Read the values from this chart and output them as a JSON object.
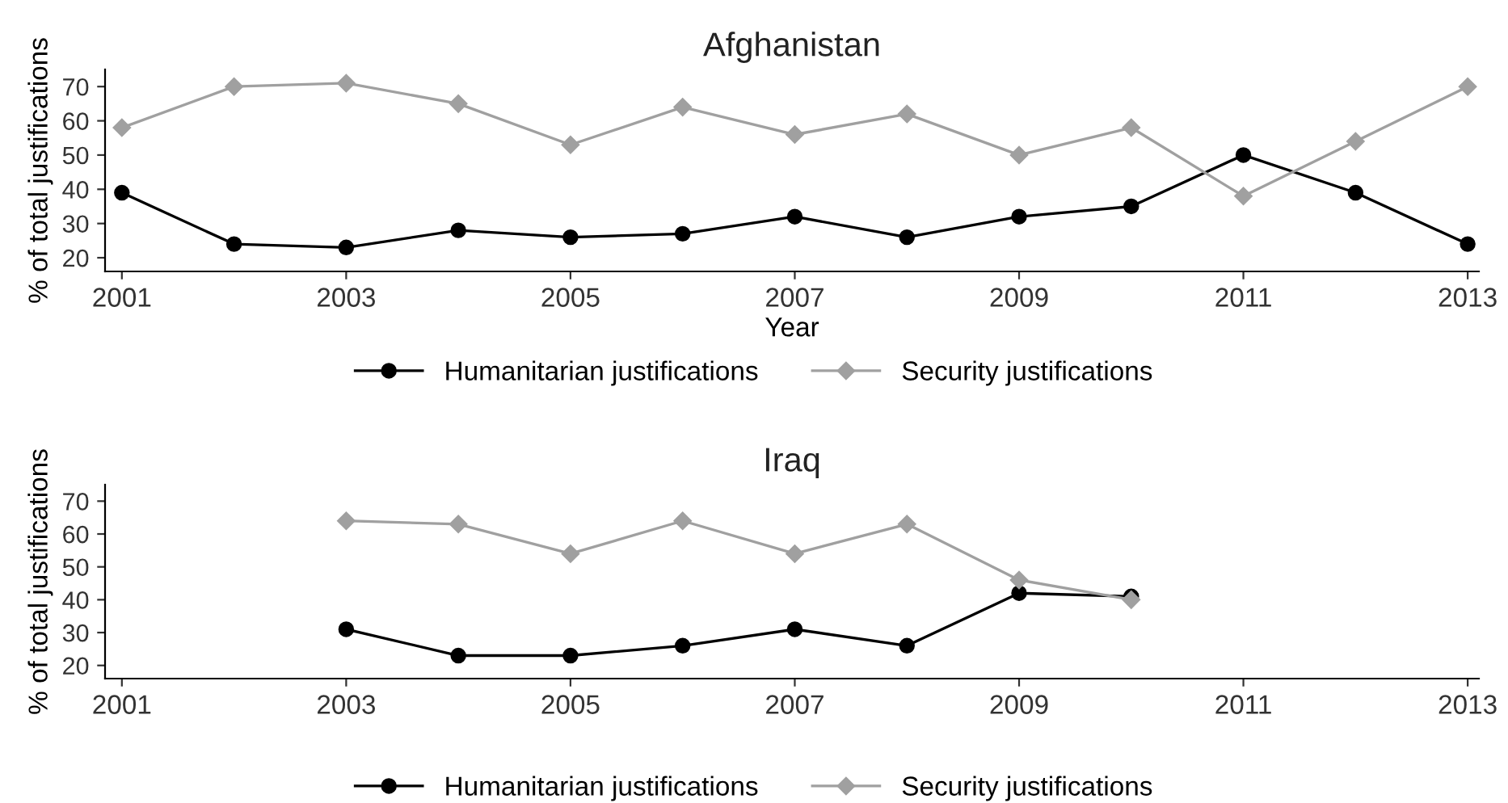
{
  "chart_data": [
    {
      "type": "line",
      "title": "Afghanistan",
      "xlabel": "Year",
      "ylabel": "% of total justifications",
      "xlim": [
        2000.85,
        2013.1
      ],
      "xticks": [
        2001,
        2003,
        2005,
        2007,
        2009,
        2011,
        2013
      ],
      "ylim": [
        16,
        75
      ],
      "yticks": [
        20,
        30,
        40,
        50,
        60,
        70
      ],
      "legend": "bottom",
      "x": [
        2001,
        2002,
        2003,
        2004,
        2005,
        2006,
        2007,
        2008,
        2009,
        2010,
        2011,
        2012,
        2013
      ],
      "series": [
        {
          "name": "Humanitarian justifications",
          "color": "#000000",
          "marker": "circle",
          "values": [
            39,
            24,
            23,
            28,
            26,
            27,
            32,
            26,
            32,
            35,
            50,
            39,
            24
          ]
        },
        {
          "name": "Security justifications",
          "color": "#a0a0a0",
          "marker": "diamond",
          "values": [
            58,
            70,
            71,
            65,
            53,
            64,
            56,
            62,
            50,
            58,
            38,
            54,
            70
          ]
        }
      ]
    },
    {
      "type": "line",
      "title": "Iraq",
      "ylabel": "% of total justifications",
      "xlim": [
        2000.85,
        2013.1
      ],
      "xticks": [
        2001,
        2003,
        2005,
        2007,
        2009,
        2011,
        2013
      ],
      "ylim": [
        16,
        75
      ],
      "yticks": [
        20,
        30,
        40,
        50,
        60,
        70
      ],
      "legend": "bottom",
      "x": [
        2003,
        2004,
        2005,
        2006,
        2007,
        2008,
        2009,
        2010
      ],
      "series": [
        {
          "name": "Humanitarian justifications",
          "color": "#000000",
          "marker": "circle",
          "values": [
            31,
            23,
            23,
            26,
            31,
            26,
            42,
            41
          ]
        },
        {
          "name": "Security justifications",
          "color": "#a0a0a0",
          "marker": "diamond",
          "values": [
            64,
            63,
            54,
            64,
            54,
            63,
            46,
            40
          ]
        }
      ]
    }
  ]
}
